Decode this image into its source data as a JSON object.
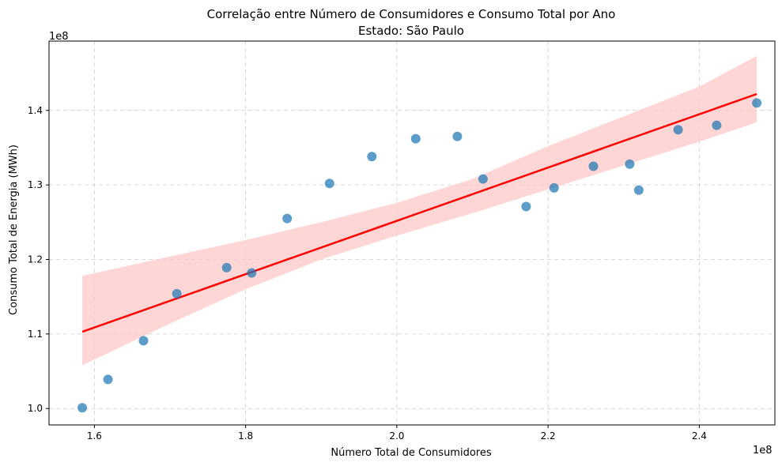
{
  "chart_data": {
    "type": "scatter",
    "title": "Correlação entre Número de Consumidores e Consumo Total por Ano",
    "subtitle": "Estado: São Paulo",
    "xlabel": "Número Total de Consumidores",
    "ylabel": "Consumo Total de Energia (MWh)",
    "x_offset_label": "1e8",
    "y_offset_label": "1e8",
    "xlim": [
      1.54,
      2.5
    ],
    "ylim": [
      0.978,
      1.493
    ],
    "x_ticks": [
      1.6,
      1.8,
      2.0,
      2.2,
      2.4
    ],
    "x_tick_labels": [
      "1.6",
      "1.8",
      "2.0",
      "2.2",
      "2.4"
    ],
    "y_ticks": [
      1.0,
      1.1,
      1.2,
      1.3,
      1.4
    ],
    "y_tick_labels": [
      "1.0",
      "1.1",
      "1.2",
      "1.3",
      "1.4"
    ],
    "grid": true,
    "points": [
      {
        "x": 1.584,
        "y": 1.001
      },
      {
        "x": 1.618,
        "y": 1.039
      },
      {
        "x": 1.665,
        "y": 1.091
      },
      {
        "x": 1.709,
        "y": 1.154
      },
      {
        "x": 1.775,
        "y": 1.189
      },
      {
        "x": 1.808,
        "y": 1.182
      },
      {
        "x": 1.855,
        "y": 1.255
      },
      {
        "x": 1.911,
        "y": 1.302
      },
      {
        "x": 1.967,
        "y": 1.338
      },
      {
        "x": 2.025,
        "y": 1.362
      },
      {
        "x": 2.08,
        "y": 1.365
      },
      {
        "x": 2.114,
        "y": 1.308
      },
      {
        "x": 2.171,
        "y": 1.271
      },
      {
        "x": 2.208,
        "y": 1.296
      },
      {
        "x": 2.26,
        "y": 1.325
      },
      {
        "x": 2.308,
        "y": 1.328
      },
      {
        "x": 2.32,
        "y": 1.293
      },
      {
        "x": 2.372,
        "y": 1.374
      },
      {
        "x": 2.423,
        "y": 1.38
      },
      {
        "x": 2.476,
        "y": 1.41
      }
    ],
    "regression": {
      "x_start": 1.584,
      "y_start": 1.103,
      "x_end": 2.476,
      "y_end": 1.422,
      "ci_upper": [
        {
          "x": 1.584,
          "y": 1.178
        },
        {
          "x": 1.7,
          "y": 1.204
        },
        {
          "x": 1.8,
          "y": 1.226
        },
        {
          "x": 1.9,
          "y": 1.25
        },
        {
          "x": 2.0,
          "y": 1.276
        },
        {
          "x": 2.1,
          "y": 1.308
        },
        {
          "x": 2.2,
          "y": 1.352
        },
        {
          "x": 2.3,
          "y": 1.392
        },
        {
          "x": 2.4,
          "y": 1.432
        },
        {
          "x": 2.476,
          "y": 1.473
        }
      ],
      "ci_lower": [
        {
          "x": 1.584,
          "y": 1.058
        },
        {
          "x": 1.7,
          "y": 1.114
        },
        {
          "x": 1.8,
          "y": 1.16
        },
        {
          "x": 1.9,
          "y": 1.2
        },
        {
          "x": 2.0,
          "y": 1.232
        },
        {
          "x": 2.1,
          "y": 1.262
        },
        {
          "x": 2.2,
          "y": 1.294
        },
        {
          "x": 2.3,
          "y": 1.326
        },
        {
          "x": 2.4,
          "y": 1.358
        },
        {
          "x": 2.476,
          "y": 1.384
        }
      ]
    },
    "colors": {
      "points": "#1f77b4",
      "line": "#ff0000",
      "band": "#ffcccc",
      "grid": "#cccccc"
    }
  }
}
